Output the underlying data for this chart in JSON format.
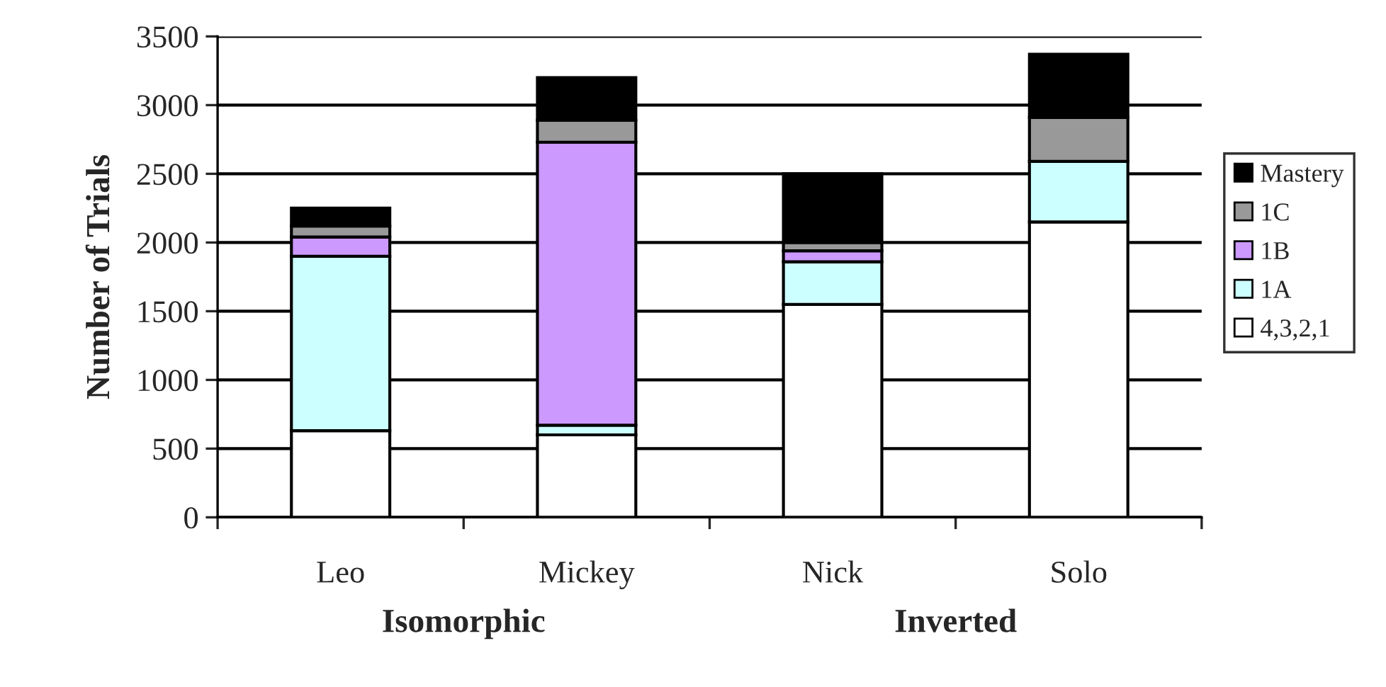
{
  "chart_data": {
    "type": "bar",
    "stacked": true,
    "ylabel": "Number of Trials",
    "categories": [
      "Leo",
      "Mickey",
      "Nick",
      "Solo"
    ],
    "series": [
      {
        "name": "4,3,2,1",
        "color": "#ffffff",
        "values": [
          630,
          600,
          1550,
          2150
        ]
      },
      {
        "name": "1A",
        "color": "#ccffff",
        "values": [
          1270,
          70,
          310,
          440
        ]
      },
      {
        "name": "1B",
        "color": "#cc99ff",
        "values": [
          140,
          2060,
          80,
          null
        ]
      },
      {
        "name": "1C",
        "color": "#999999",
        "values": [
          80,
          160,
          60,
          320
        ]
      },
      {
        "name": "Mastery",
        "color": "#000000",
        "values": [
          130,
          310,
          500,
          460
        ]
      }
    ],
    "ylim": [
      0,
      3500
    ],
    "yticks": [
      0,
      500,
      1000,
      1500,
      2000,
      2500,
      3000,
      3500
    ],
    "grid": "y",
    "legend": "right",
    "annotations": [
      "Isomorphic",
      "Inverted"
    ]
  }
}
